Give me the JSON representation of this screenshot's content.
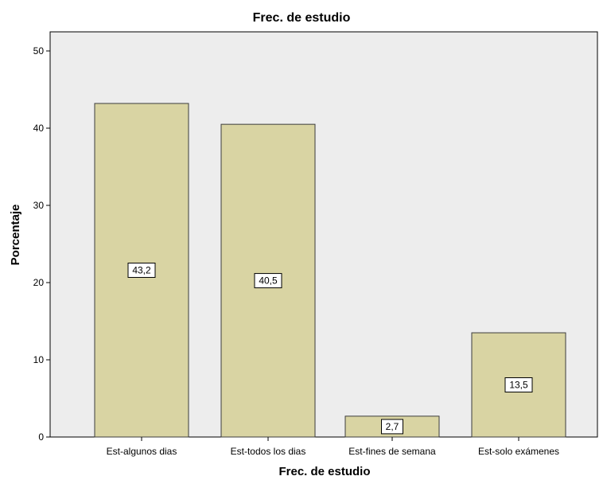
{
  "chart_data": {
    "type": "bar",
    "title": "Frec. de estudio",
    "xlabel": "Frec. de estudio",
    "ylabel": "Porcentaje",
    "categories": [
      "Est-algunos dias",
      "Est-todos los dias",
      "Est-fines de semana",
      "Est-solo exámenes"
    ],
    "values": [
      43.2,
      40.5,
      2.7,
      13.5
    ],
    "data_labels": [
      "43,2",
      "40,5",
      "2,7",
      "13,5"
    ],
    "ylim": [
      0,
      50
    ],
    "yticks": [
      0,
      10,
      20,
      30,
      40,
      50
    ],
    "grid": false,
    "legend": "none",
    "colors": {
      "plot_background": "#EDEDED",
      "bar_fill": "#D9D4A3",
      "bar_stroke": "#3C3C3C",
      "label_box_fill": "#FFFFFF"
    }
  }
}
